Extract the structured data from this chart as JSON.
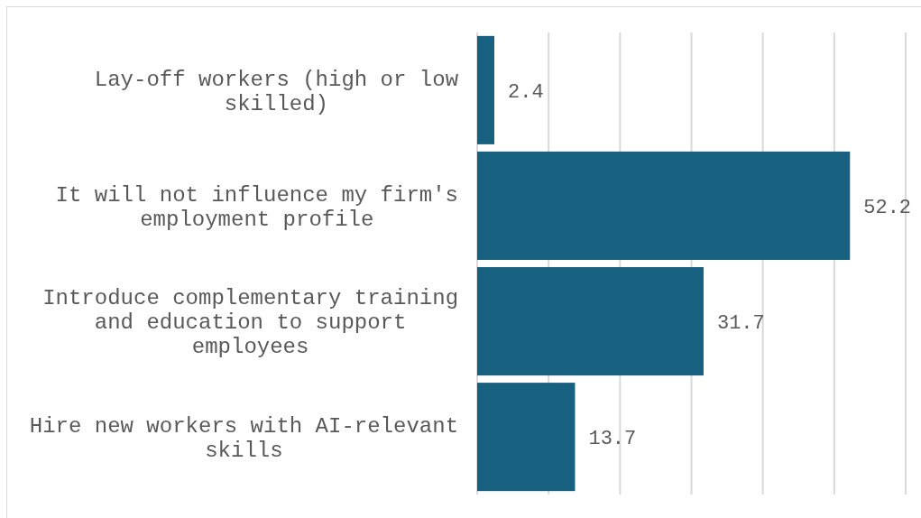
{
  "chart_data": {
    "type": "bar",
    "orientation": "horizontal",
    "categories": [
      "Lay-off workers (high or low skilled)",
      "It will not influence my firm's employment profile",
      "Introduce complementary training and education to support employees",
      "Hire new workers with AI-relevant skills"
    ],
    "values": [
      2.4,
      52.2,
      31.7,
      13.7
    ],
    "color": "#17607f",
    "xlim": [
      0,
      60
    ],
    "xticks": [
      {
        "value": 0,
        "label": null
      },
      {
        "value": 10,
        "label": null
      },
      {
        "value": 20,
        "label": null
      },
      {
        "value": 30,
        "label": null
      },
      {
        "value": 40,
        "label": null
      },
      {
        "value": 50,
        "label": null
      },
      {
        "value": 60,
        "label": null
      }
    ],
    "grid": "x",
    "tick_labels": "y",
    "data_labels": true
  }
}
